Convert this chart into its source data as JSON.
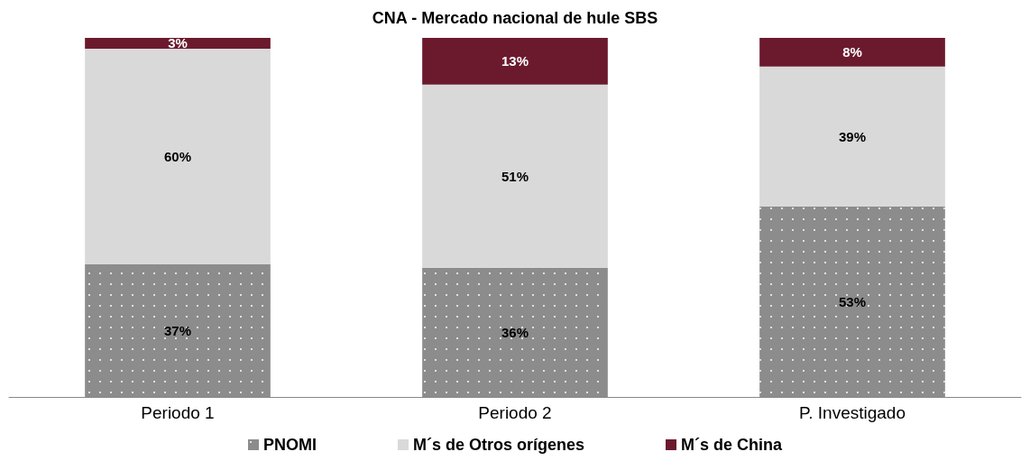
{
  "chart_data": {
    "type": "bar",
    "title": "CNA - Mercado nacional de hule SBS",
    "categories": [
      "Periodo 1",
      "Periodo 2",
      "P. Investigado"
    ],
    "stacked": true,
    "ylim": [
      0,
      100
    ],
    "tick_labels": "x",
    "legend": "bottom",
    "series": [
      {
        "name": "PNOMI",
        "color": "#8c8c8c",
        "values": [
          37,
          36,
          53
        ],
        "value_labels": [
          "37%",
          "36%",
          "53%"
        ]
      },
      {
        "name": "M´s de Otros orígenes",
        "color": "#d9d9d9",
        "values": [
          60,
          51,
          39
        ],
        "value_labels": [
          "60%",
          "51%",
          "39%"
        ]
      },
      {
        "name": "M´s de China",
        "color": "#6b1a2e",
        "values": [
          3,
          13,
          8
        ],
        "value_labels": [
          "3%",
          "13%",
          "8%"
        ]
      }
    ]
  }
}
